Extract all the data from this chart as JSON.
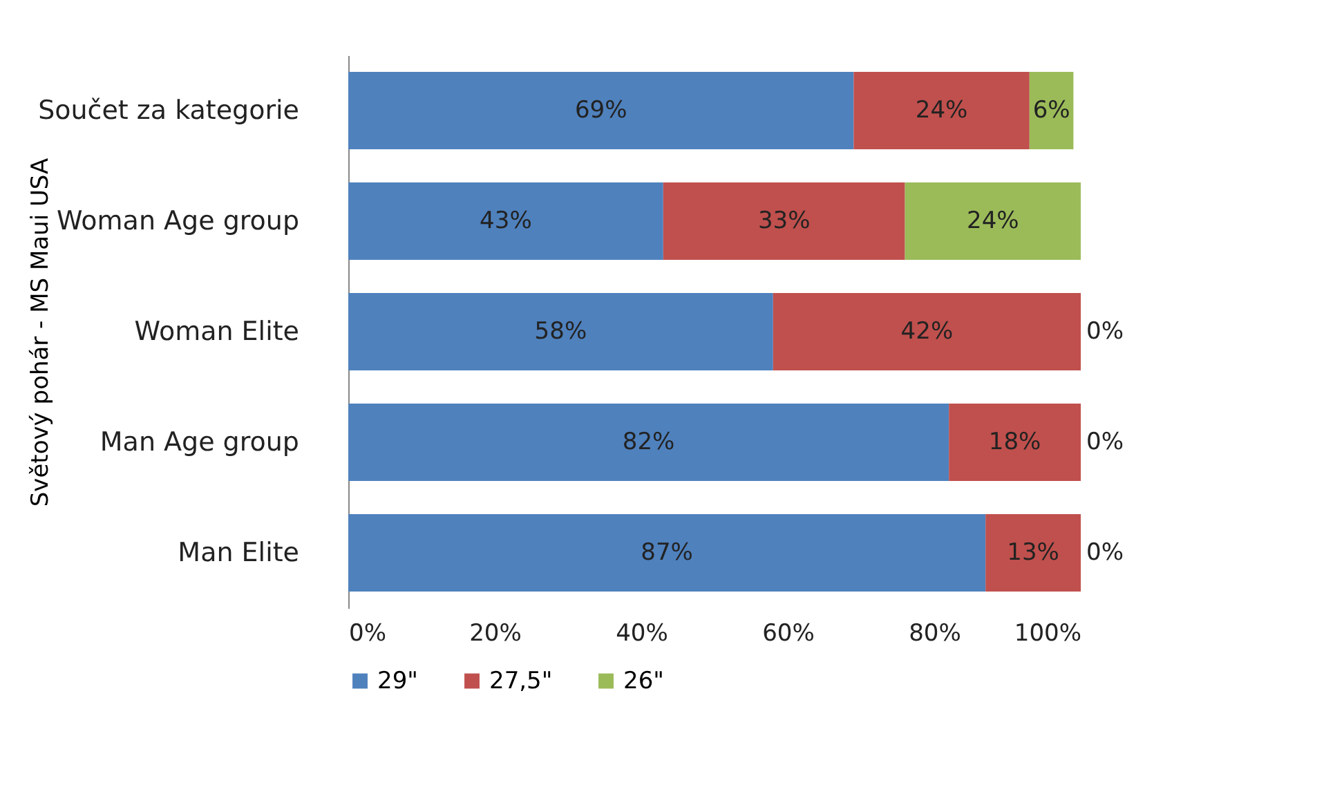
{
  "chart_data": {
    "type": "bar",
    "orientation": "horizontal",
    "stacked": true,
    "ylabel": "Světový pohár - MS Maui USA",
    "categories": [
      "Součet za kategorie",
      "Woman Age group",
      "Woman Elite",
      "Man Age group",
      "Man Elite"
    ],
    "series": [
      {
        "name": "29\"",
        "color": "#4f81bd",
        "values": [
          69,
          43,
          58,
          82,
          87
        ],
        "value_labels": [
          "69%",
          "43%",
          "58%",
          "82%",
          "87%"
        ]
      },
      {
        "name": "27,5\"",
        "color": "#c0504d",
        "values": [
          24,
          33,
          42,
          18,
          13
        ],
        "value_labels": [
          "24%",
          "33%",
          "42%",
          "18%",
          "13%"
        ]
      },
      {
        "name": "26\"",
        "color": "#9bbb59",
        "values": [
          6,
          24,
          0,
          0,
          0
        ],
        "value_labels": [
          "6%",
          "24%",
          "0%",
          "0%",
          "0%"
        ]
      }
    ],
    "xlim": [
      0,
      100
    ],
    "xticks": [
      {
        "value": 0,
        "label": "0%"
      },
      {
        "value": 20,
        "label": "20%"
      },
      {
        "value": 40,
        "label": "40%"
      },
      {
        "value": 60,
        "label": "60%"
      },
      {
        "value": 80,
        "label": "80%"
      },
      {
        "value": 100,
        "label": "100%"
      }
    ],
    "grid": false,
    "legend": "bottom"
  }
}
